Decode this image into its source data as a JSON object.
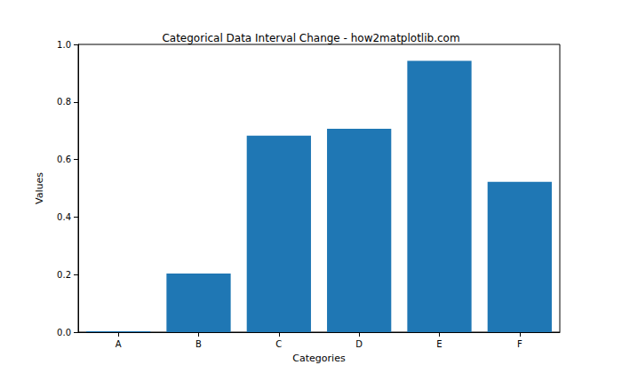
{
  "chart_data": {
    "type": "bar",
    "title": "Categorical Data Interval Change - how2matplotlib.com",
    "x_label": "Categories",
    "y_label": "Values",
    "categories": [
      "A",
      "B",
      "C",
      "D",
      "E",
      "F"
    ],
    "values": [
      0.003,
      0.204,
      0.683,
      0.707,
      0.943,
      0.522
    ],
    "color": "#1f77b4",
    "ylim": [
      0,
      1
    ],
    "yticks": [
      {
        "value": 0,
        "label": "0.0"
      },
      0.2,
      0.4,
      0.6,
      0.8,
      {
        "value": 1,
        "label": "1.0"
      }
    ],
    "grid": false
  }
}
